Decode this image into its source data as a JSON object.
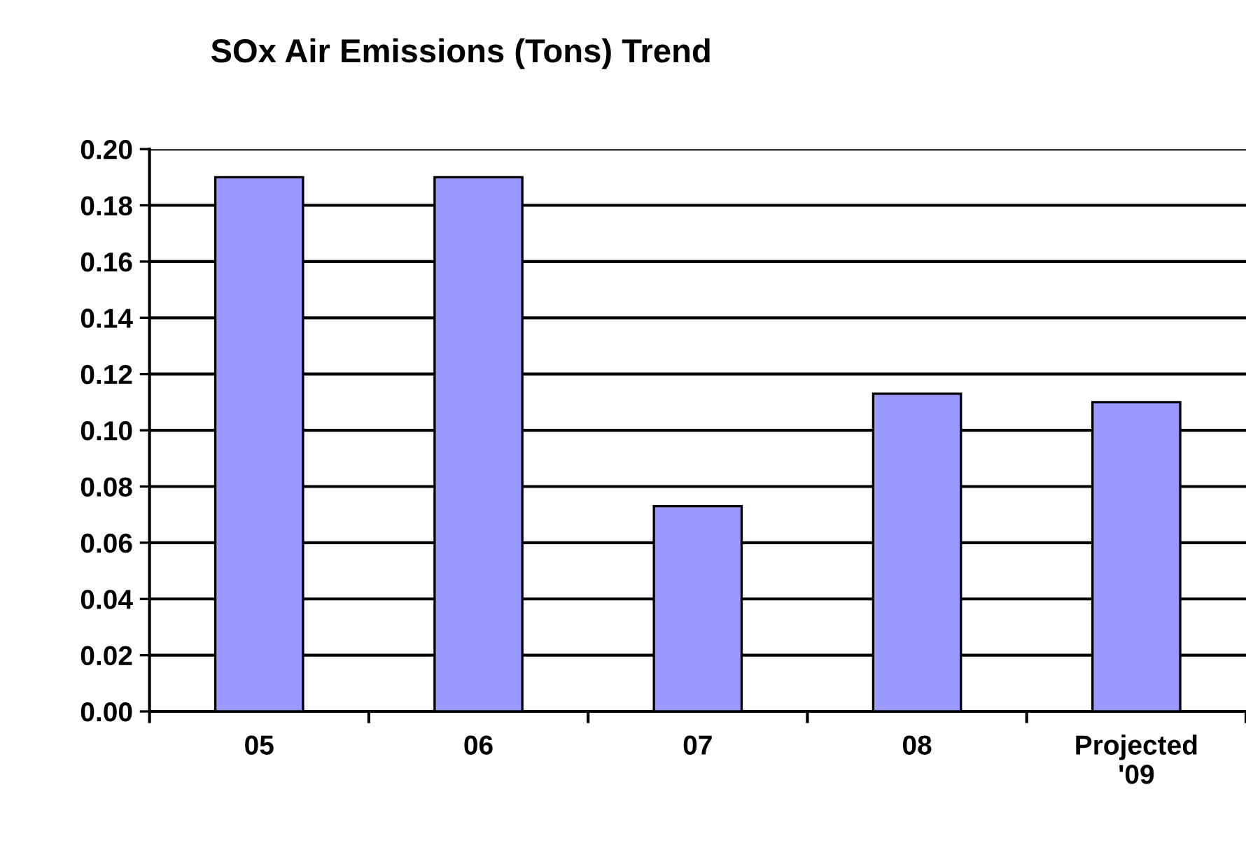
{
  "chart_data": {
    "type": "bar",
    "title": "SOx Air Emissions (Tons) Trend",
    "categories": [
      "05",
      "06",
      "07",
      "08",
      "Projected\n'09"
    ],
    "values": [
      0.19,
      0.19,
      0.073,
      0.113,
      0.11
    ],
    "color": "#9999ff",
    "ylim": [
      0,
      0.2
    ],
    "yticks": [
      {
        "value": 0,
        "label": "0.00"
      },
      {
        "value": 0.02,
        "label": "0.02"
      },
      {
        "value": 0.04,
        "label": "0.04"
      },
      {
        "value": 0.06,
        "label": "0.06"
      },
      {
        "value": 0.08,
        "label": "0.08"
      },
      {
        "value": 0.1,
        "label": "0.10"
      },
      {
        "value": 0.12,
        "label": "0.12"
      },
      {
        "value": 0.14,
        "label": "0.14"
      },
      {
        "value": 0.16,
        "label": "0.16"
      },
      {
        "value": 0.18,
        "label": "0.18"
      },
      {
        "value": 0.2,
        "label": "0.20"
      }
    ],
    "grid": "y",
    "legend": false
  }
}
